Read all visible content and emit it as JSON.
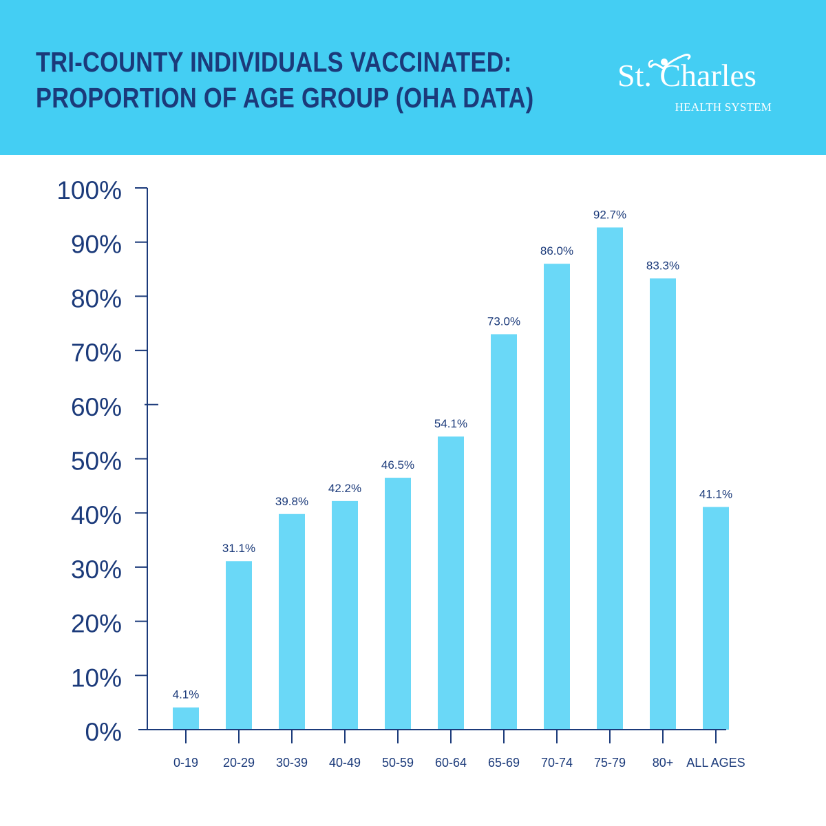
{
  "header": {
    "title_line1": "TRI-COUNTY INDIVIDUALS VACCINATED:",
    "title_line2": "PROPORTION OF AGE GROUP (OHA DATA)",
    "background_color": "#44cef3",
    "title_color": "#1b3a7a"
  },
  "logo": {
    "name": "St. Charles",
    "subtitle": "HEALTH SYSTEM",
    "icon": "person-figure-icon",
    "color": "#ffffff"
  },
  "chart_data": {
    "type": "bar",
    "categories": [
      "0-19",
      "20-29",
      "30-39",
      "40-49",
      "50-59",
      "60-64",
      "65-69",
      "70-74",
      "75-79",
      "80+",
      "ALL AGES"
    ],
    "values": [
      4.1,
      31.1,
      39.8,
      42.2,
      46.5,
      54.1,
      73.0,
      86.0,
      92.7,
      83.3,
      41.1
    ],
    "data_labels": [
      "4.1%",
      "31.1%",
      "39.8%",
      "42.2%",
      "46.5%",
      "54.1%",
      "73.0%",
      "86.0%",
      "92.7%",
      "83.3%",
      "41.1%"
    ],
    "yticks": [
      0,
      10,
      20,
      30,
      40,
      50,
      60,
      70,
      80,
      90,
      100
    ],
    "ytick_labels": [
      "0%",
      "10%",
      "20%",
      "30%",
      "40%",
      "50%",
      "60%",
      "70%",
      "80%",
      "90%",
      "100%"
    ],
    "ylim": [
      0,
      100
    ],
    "grid": false,
    "legend": "none",
    "bar_color": "#6ad8f7",
    "axis_color": "#1b3a7a"
  }
}
